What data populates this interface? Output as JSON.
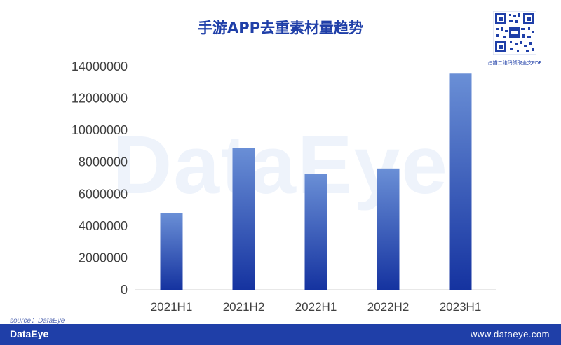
{
  "title": "手游APP去重素材量趋势",
  "qr": {
    "icon": "qr-code-icon",
    "caption": "扫描二维码领取全文PDF"
  },
  "watermark": "DataEye",
  "source_note": "source：DataEye",
  "footer": {
    "logo": "DataEye",
    "url": "www.dataeye.com"
  },
  "colors": {
    "accent": "#1f3fa8",
    "bar_top": "#6a8fd6",
    "bar_bottom": "#1533a0"
  },
  "chart_data": {
    "type": "bar",
    "title": "手游APP去重素材量趋势",
    "xlabel": "",
    "ylabel": "",
    "categories": [
      "2021H1",
      "2021H2",
      "2022H1",
      "2022H2",
      "2023H1"
    ],
    "values": [
      4800000,
      8900000,
      7250000,
      7600000,
      13550000
    ],
    "ylim": [
      0,
      14000000
    ],
    "yticks": [
      0,
      2000000,
      4000000,
      6000000,
      8000000,
      10000000,
      12000000,
      14000000
    ],
    "ytick_labels": [
      "0",
      "2000000",
      "4000000",
      "6000000",
      "8000000",
      "10000000",
      "12000000",
      "14000000"
    ],
    "grid": false,
    "legend": "none"
  }
}
